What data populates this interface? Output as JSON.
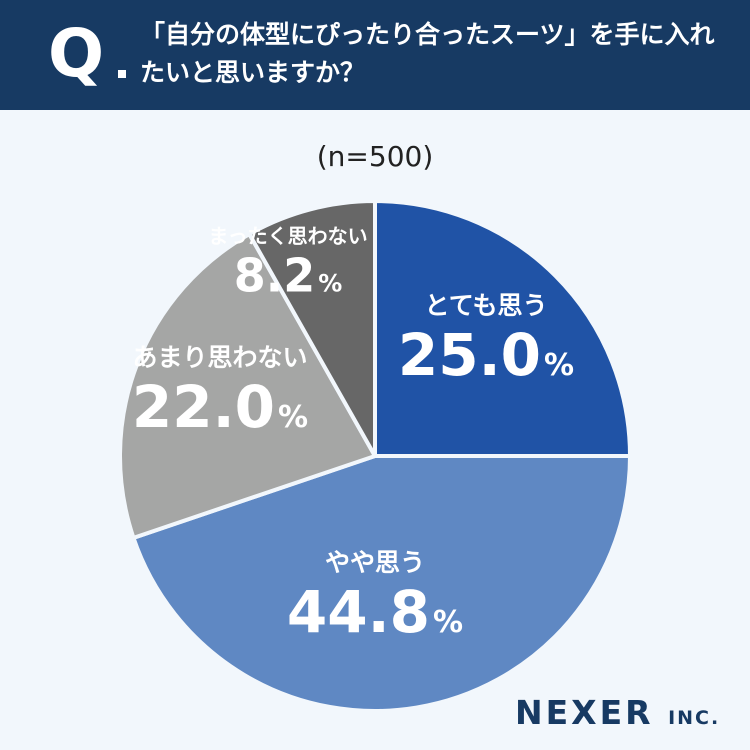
{
  "question": {
    "mark": "Q",
    "text": "「自分の体型にぴったり合ったスーツ」を手に入れたいと思いますか？"
  },
  "sample_size": "(n=500)",
  "brand": {
    "name": "NEXER",
    "suffix": "INC."
  },
  "chart_data": {
    "type": "pie",
    "start_angle_deg": 0,
    "direction": "clockwise",
    "slices": [
      {
        "label": "とても思う",
        "value": 25.0,
        "display": "25.0",
        "color": "#2053a6",
        "text_color": "#ffffff"
      },
      {
        "label": "やや思う",
        "value": 44.8,
        "display": "44.8",
        "color": "#5f88c3",
        "text_color": "#ffffff"
      },
      {
        "label": "あまり思わない",
        "value": 22.0,
        "display": "22.0",
        "color": "#a5a6a5",
        "text_color": "#ffffff"
      },
      {
        "label": "まったく思わない",
        "value": 8.2,
        "display": "8.2",
        "color": "#676767",
        "text_color": "#ffffff"
      }
    ],
    "unit": "%"
  }
}
